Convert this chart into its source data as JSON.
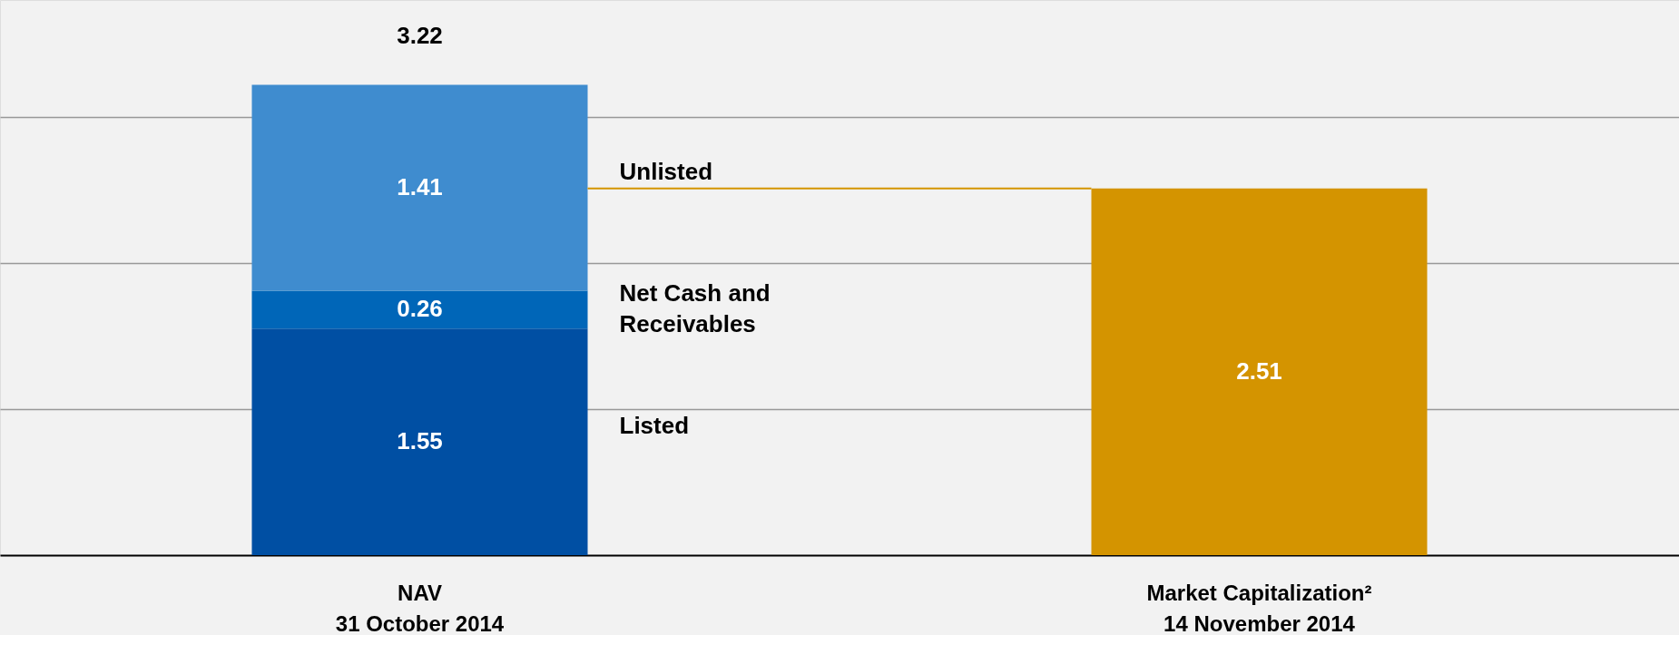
{
  "chart_data": {
    "type": "bar",
    "stacked": true,
    "categories": [
      "NAV\n31 October 2014",
      "Market Capitalization²\n14 November 2014"
    ],
    "series": [
      {
        "name": "Listed",
        "color": "#004fa3",
        "values": [
          1.55,
          null
        ]
      },
      {
        "name": "Net Cash and\nReceivables",
        "color": "#0066b8",
        "values": [
          0.26,
          null
        ]
      },
      {
        "name": "Unlisted",
        "color": "#3f8ccf",
        "values": [
          1.41,
          null
        ]
      },
      {
        "color": "#d49400",
        "values": [
          null,
          2.51
        ]
      }
    ],
    "totals": [
      "3.22",
      null
    ],
    "data_labels": true,
    "ylim": [
      0,
      3.8
    ],
    "yticks": [
      {
        "value": 1,
        "label": null
      },
      {
        "value": 2,
        "label": null
      },
      {
        "value": 3,
        "label": null
      }
    ],
    "grid": "y",
    "tick_labels": "x",
    "ref_lines": [
      {
        "axis": "y",
        "value": 2.51,
        "color": "#d49400"
      }
    ]
  }
}
